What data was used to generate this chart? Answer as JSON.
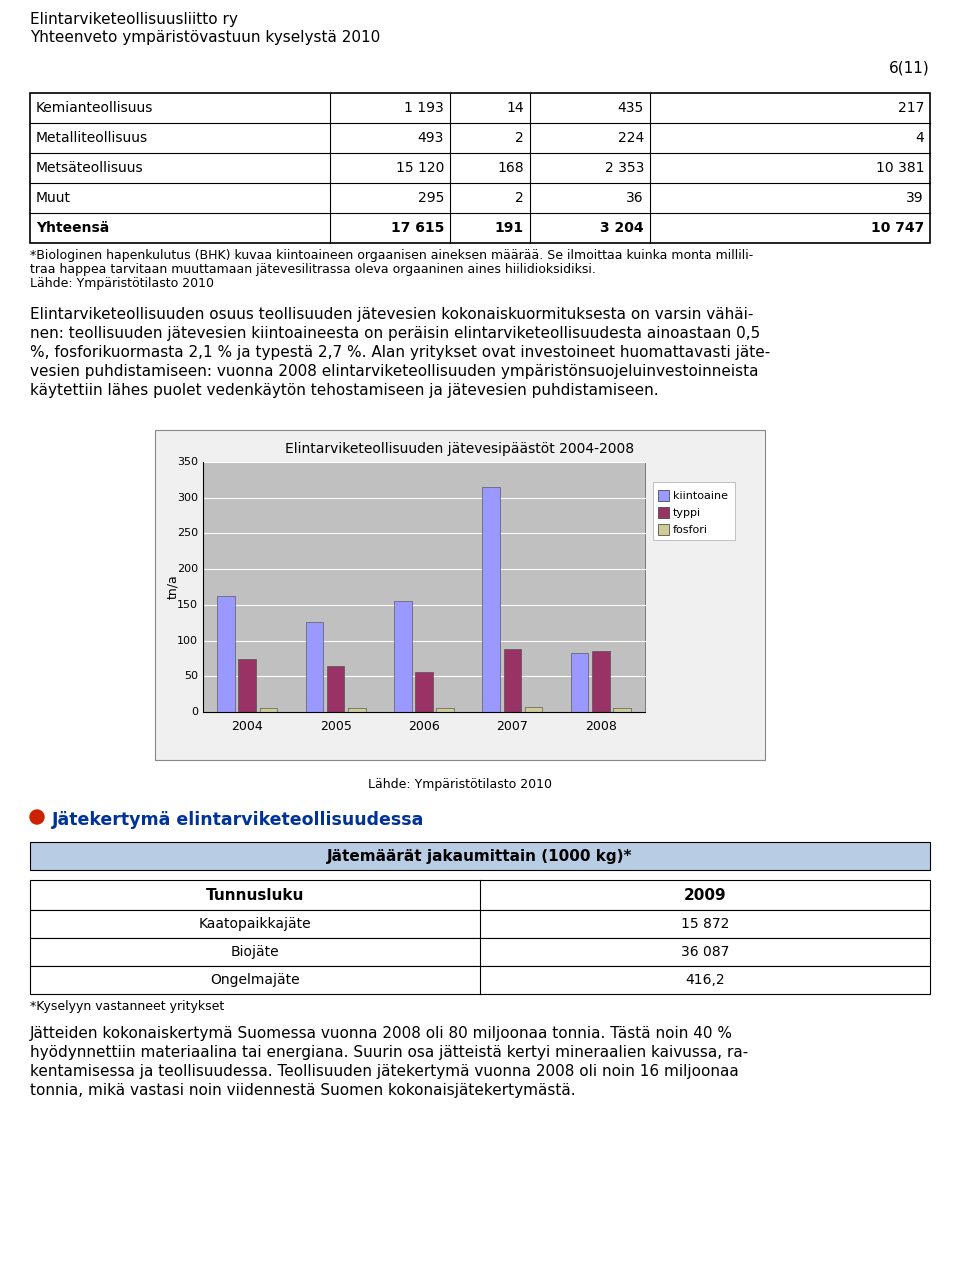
{
  "header_line1": "Elintarviketeollisuusliitto ry",
  "header_line2": "Yhteenveto ympäristövastuun kyselystä 2010",
  "page_num": "6(11)",
  "table1_rows": [
    [
      "Kemianteollisuus",
      "1 193",
      "14",
      "435",
      "217"
    ],
    [
      "Metalliteollisuus",
      "493",
      "2",
      "224",
      "4"
    ],
    [
      "Metsäteollisuus",
      "15 120",
      "168",
      "2 353",
      "10 381"
    ],
    [
      "Muut",
      "295",
      "2",
      "36",
      "39"
    ],
    [
      "Yhteensä",
      "17 615",
      "191",
      "3 204",
      "10 747"
    ]
  ],
  "fn1_line1": "*Biologinen hapenkulutus (BHK) kuvaa kiintoaineen orgaanisen aineksen määrää. Se ilmoittaa kuinka monta millili-",
  "fn1_line2": "traa happea tarvitaan muuttamaan jätevesilitrassa oleva orgaaninen aines hiilidioksidiksi.",
  "fn2": "Lähde: Ympäristötilasto 2010",
  "body_lines": [
    "Elintarviketeollisuuden osuus teollisuuden jätevesien kokonaiskuormituksesta on varsin vähäi-",
    "nen: teollisuuden jätevesien kiintoaineesta on peräisin elintarviketeollisuudesta ainoastaan 0,5",
    "%, fosforikuormasta 2,1 % ja typestä 2,7 %. Alan yritykset ovat investoineet huomattavasti jäte-",
    "vesien puhdistamiseen: vuonna 2008 elintarviketeollisuuden ympäristönsuojeluinvestoinneista",
    "käytettiin lähes puolet vedenkäytön tehostamiseen ja jätevesien puhdistamiseen."
  ],
  "chart_title": "Elintarviketeollisuuden jätevesipäästöt 2004-2008",
  "chart_years": [
    2004,
    2005,
    2006,
    2007,
    2008
  ],
  "chart_kiintoaine": [
    163,
    126,
    155,
    315,
    83
  ],
  "chart_typpi": [
    74,
    64,
    56,
    88,
    86
  ],
  "chart_fosfori": [
    6,
    6,
    5,
    7,
    6
  ],
  "chart_ylabel": "tn/a",
  "chart_yticks": [
    0,
    50,
    100,
    150,
    200,
    250,
    300,
    350
  ],
  "chart_legend": [
    "kiintoaine",
    "typpi",
    "fosfori"
  ],
  "color_kiintoaine": "#9999ff",
  "color_typpi": "#993366",
  "color_fosfori": "#cccc99",
  "chart_source": "Lähde: Ympäristötilasto 2010",
  "section_bullet_color": "#cc2200",
  "section_title": "Jätekertymä elintarviketeollisuudessa",
  "section_title_color": "#003399",
  "table2_header": "Jätemäärät jakaumittain (1000 kg)*",
  "table2_header_bg": "#b8cce4",
  "table2_col_headers": [
    "Tunnusluku",
    "2009"
  ],
  "table2_rows": [
    [
      "Kaatopaikkajäte",
      "15 872"
    ],
    [
      "Biojäte",
      "36 087"
    ],
    [
      "Ongelmajäte",
      "416,2"
    ]
  ],
  "table2_footnote": "*Kyselyyn vastanneet yritykset",
  "final_lines": [
    "Jätteiden kokonaiskertymä Suomessa vuonna 2008 oli 80 miljoonaa tonnia. Tästä noin 40 %",
    "hyödynnettiin materiaalina tai energiana. Suurin osa jätteistä kertyi mineraalien kaivussa, ra-",
    "kentamisessa ja teollisuudessa. Teollisuuden jätekertymä vuonna 2008 oli noin 16 miljoonaa",
    "tonnia, mikä vastasi noin viidennestä Suomen kokonaisjätekertymästä."
  ],
  "bg_color": "#ffffff",
  "text_color": "#000000"
}
